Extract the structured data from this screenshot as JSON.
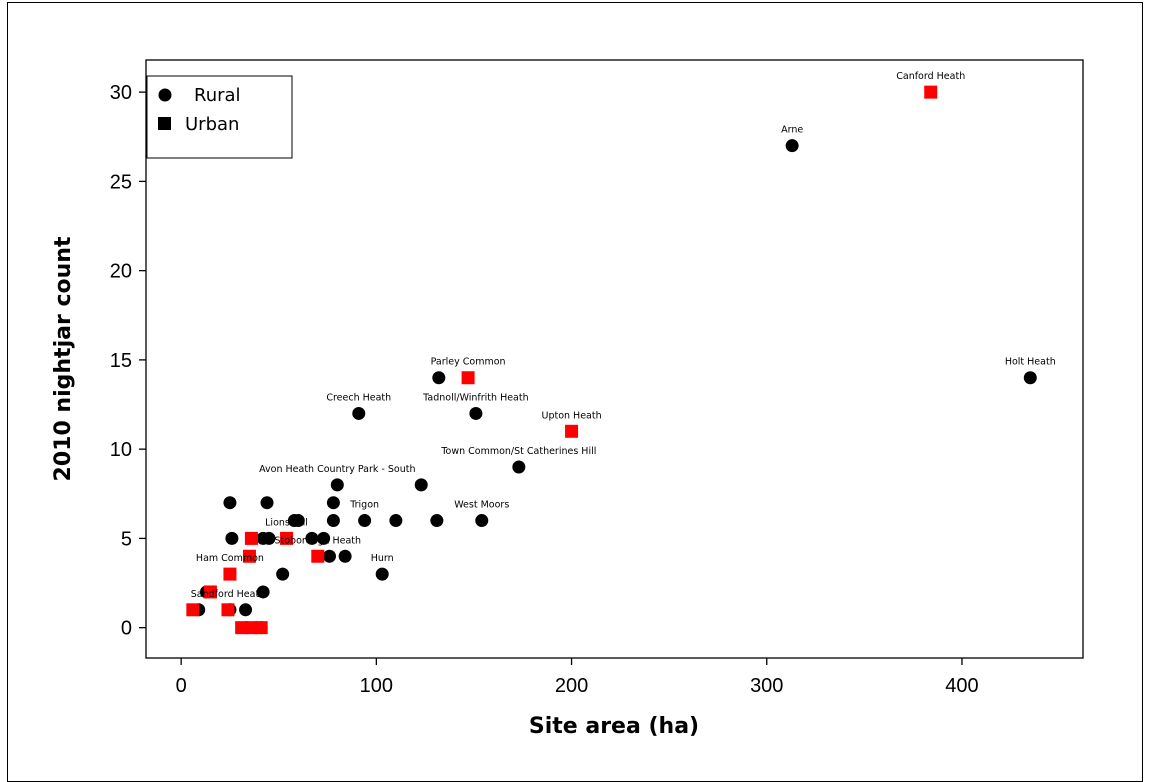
{
  "chart_data": {
    "type": "scatter",
    "title": "",
    "xlabel": "Site area (ha)",
    "ylabel": "2010 nightjar count",
    "xlim": [
      -18,
      462
    ],
    "ylim": [
      -1.7,
      31.8
    ],
    "xticks": [
      0,
      100,
      200,
      300,
      400
    ],
    "yticks": [
      0,
      5,
      10,
      15,
      20,
      25,
      30
    ],
    "grid": false,
    "legend_position": "top-left",
    "series": [
      {
        "name": "Rural",
        "color": "#000000",
        "marker": "circle",
        "points": [
          {
            "x": 313,
            "y": 27,
            "label": "Arne"
          },
          {
            "x": 435,
            "y": 14,
            "label": "Holt Heath"
          },
          {
            "x": 132,
            "y": 14
          },
          {
            "x": 91,
            "y": 12,
            "label": "Creech Heath"
          },
          {
            "x": 151,
            "y": 12,
            "label": "Tadnoll/Winfrith Heath"
          },
          {
            "x": 173,
            "y": 9,
            "label": "Town Common/St Catherines Hill"
          },
          {
            "x": 123,
            "y": 8
          },
          {
            "x": 80,
            "y": 8,
            "label": "Avon Heath Country Park - South"
          },
          {
            "x": 25,
            "y": 7
          },
          {
            "x": 44,
            "y": 7
          },
          {
            "x": 78,
            "y": 7
          },
          {
            "x": 58,
            "y": 6
          },
          {
            "x": 60,
            "y": 6
          },
          {
            "x": 78,
            "y": 6
          },
          {
            "x": 94,
            "y": 6,
            "label": "Trigon"
          },
          {
            "x": 110,
            "y": 6
          },
          {
            "x": 131,
            "y": 6
          },
          {
            "x": 154,
            "y": 6,
            "label": "West Moors"
          },
          {
            "x": 26,
            "y": 5
          },
          {
            "x": 42,
            "y": 5
          },
          {
            "x": 45,
            "y": 5
          },
          {
            "x": 67,
            "y": 5
          },
          {
            "x": 73,
            "y": 5
          },
          {
            "x": 76,
            "y": 4
          },
          {
            "x": 84,
            "y": 4
          },
          {
            "x": 52,
            "y": 3
          },
          {
            "x": 103,
            "y": 3,
            "label": "Hurn"
          },
          {
            "x": 42,
            "y": 2
          },
          {
            "x": 13,
            "y": 2
          },
          {
            "x": 9,
            "y": 1
          },
          {
            "x": 25,
            "y": 1
          },
          {
            "x": 33,
            "y": 1
          },
          {
            "x": 41,
            "y": 0
          }
        ]
      },
      {
        "name": "Urban",
        "color": "#ff0000",
        "marker": "square",
        "points": [
          {
            "x": 384,
            "y": 30,
            "label": "Canford Heath"
          },
          {
            "x": 147,
            "y": 14,
            "label": "Parley Common"
          },
          {
            "x": 200,
            "y": 11,
            "label": "Upton Heath"
          },
          {
            "x": 54,
            "y": 5,
            "label": "Lions Hill"
          },
          {
            "x": 36,
            "y": 5
          },
          {
            "x": 35,
            "y": 4
          },
          {
            "x": 70,
            "y": 4,
            "label": "Stoborough Heath"
          },
          {
            "x": 25,
            "y": 3,
            "label": "Ham Common"
          },
          {
            "x": 15,
            "y": 2
          },
          {
            "x": 6,
            "y": 1
          },
          {
            "x": 24,
            "y": 1,
            "label": "Sandford Heath"
          },
          {
            "x": 31,
            "y": 0
          },
          {
            "x": 36,
            "y": 0
          },
          {
            "x": 41,
            "y": 0
          }
        ]
      }
    ]
  }
}
